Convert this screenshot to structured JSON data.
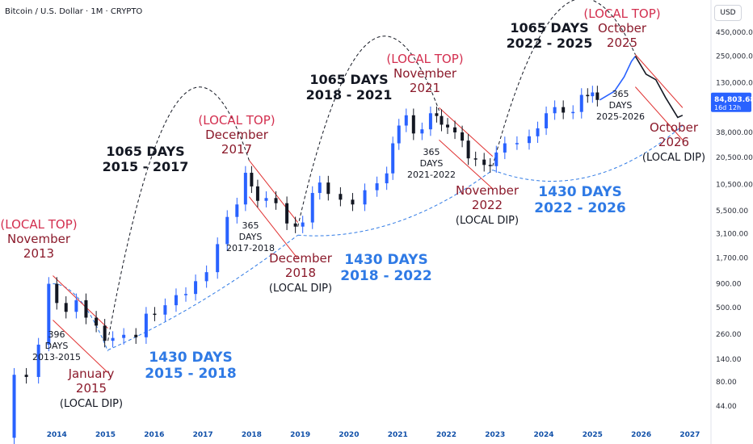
{
  "header": {
    "title": "Bitcoin / U.S. Dollar · 1M · CRYPTO",
    "currency": "USD"
  },
  "price_label": {
    "value": "84,803.68",
    "countdown": "16d 12h"
  },
  "colors": {
    "up": "#2962ff",
    "down": "#131722",
    "top": "#c2185b",
    "cycle_blue": "#2f7ae5",
    "channel": "#e03131",
    "projection_up": "#2962ff",
    "projection_down": "#131722"
  },
  "chart_data": {
    "type": "candlestick",
    "title": "Bitcoin / U.S. Dollar · 1M · CRYPTO",
    "y_scale": "log",
    "ylim": [
      30,
      700000
    ],
    "xlim": [
      2013.0,
      2027.4
    ],
    "y_ticks": [
      {
        "v": 450000,
        "label": "450,000.00"
      },
      {
        "v": 250000,
        "label": "250,000.00"
      },
      {
        "v": 130000,
        "label": "130,000.00"
      },
      {
        "v": 38000,
        "label": "38,000.00"
      },
      {
        "v": 20500,
        "label": "20,500.00"
      },
      {
        "v": 10500,
        "label": "10,500.00"
      },
      {
        "v": 5500,
        "label": "5,500.00"
      },
      {
        "v": 3100,
        "label": "3,100.00"
      },
      {
        "v": 1700,
        "label": "1,700.00"
      },
      {
        "v": 900,
        "label": "900.00"
      },
      {
        "v": 500,
        "label": "500.00"
      },
      {
        "v": 260,
        "label": "260.00"
      },
      {
        "v": 140,
        "label": "140.00"
      },
      {
        "v": 80,
        "label": "80.00"
      },
      {
        "v": 44,
        "label": "44.00"
      }
    ],
    "x_ticks": [
      "2014",
      "2015",
      "2016",
      "2017",
      "2018",
      "2019",
      "2020",
      "2021",
      "2022",
      "2023",
      "2024",
      "2025",
      "2026",
      "2027"
    ],
    "last_price": 84803.68,
    "series": [
      {
        "name": "BTCUSD monthly closes",
        "points": [
          [
            2013.0,
            20
          ],
          [
            2013.25,
            95
          ],
          [
            2013.5,
            90
          ],
          [
            2013.75,
            200
          ],
          [
            2013.92,
            900
          ],
          [
            2014.08,
            560
          ],
          [
            2014.3,
            450
          ],
          [
            2014.5,
            600
          ],
          [
            2014.7,
            390
          ],
          [
            2014.92,
            320
          ],
          [
            2015.05,
            220
          ],
          [
            2015.25,
            236
          ],
          [
            2015.5,
            255
          ],
          [
            2015.75,
            240
          ],
          [
            2015.92,
            430
          ],
          [
            2016.1,
            420
          ],
          [
            2016.35,
            530
          ],
          [
            2016.55,
            680
          ],
          [
            2016.75,
            700
          ],
          [
            2016.95,
            960
          ],
          [
            2017.2,
            1200
          ],
          [
            2017.4,
            2400
          ],
          [
            2017.6,
            4700
          ],
          [
            2017.8,
            6400
          ],
          [
            2017.95,
            14000
          ],
          [
            2018.05,
            10000
          ],
          [
            2018.2,
            7000
          ],
          [
            2018.4,
            7500
          ],
          [
            2018.6,
            6600
          ],
          [
            2018.85,
            4000
          ],
          [
            2018.95,
            3700
          ],
          [
            2019.15,
            4100
          ],
          [
            2019.35,
            8500
          ],
          [
            2019.45,
            11000
          ],
          [
            2019.7,
            8300
          ],
          [
            2019.95,
            7200
          ],
          [
            2020.2,
            6400
          ],
          [
            2020.45,
            9100
          ],
          [
            2020.7,
            10800
          ],
          [
            2020.85,
            13800
          ],
          [
            2020.95,
            29000
          ],
          [
            2021.1,
            45000
          ],
          [
            2021.25,
            58000
          ],
          [
            2021.4,
            37000
          ],
          [
            2021.6,
            41000
          ],
          [
            2021.75,
            61000
          ],
          [
            2021.85,
            57000
          ],
          [
            2021.95,
            46000
          ],
          [
            2022.1,
            43000
          ],
          [
            2022.25,
            38000
          ],
          [
            2022.4,
            31000
          ],
          [
            2022.5,
            20000
          ],
          [
            2022.7,
            19400
          ],
          [
            2022.85,
            17000
          ],
          [
            2022.95,
            16500
          ],
          [
            2023.1,
            23100
          ],
          [
            2023.3,
            29000
          ],
          [
            2023.6,
            29200
          ],
          [
            2023.8,
            34500
          ],
          [
            2023.95,
            42000
          ],
          [
            2024.15,
            61000
          ],
          [
            2024.3,
            71000
          ],
          [
            2024.5,
            62000
          ],
          [
            2024.7,
            63000
          ],
          [
            2024.85,
            96000
          ],
          [
            2024.95,
            93000
          ],
          [
            2025.05,
            102000
          ],
          [
            2025.15,
            84800
          ]
        ]
      },
      {
        "name": "projection up",
        "points": [
          [
            2025.15,
            84800
          ],
          [
            2025.45,
            105000
          ],
          [
            2025.65,
            150000
          ],
          [
            2025.8,
            220000
          ],
          [
            2025.88,
            250000
          ]
        ]
      },
      {
        "name": "projection down",
        "points": [
          [
            2025.88,
            250000
          ],
          [
            2026.1,
            160000
          ],
          [
            2026.3,
            140000
          ],
          [
            2026.5,
            90000
          ],
          [
            2026.75,
            55000
          ],
          [
            2026.85,
            58000
          ]
        ]
      }
    ],
    "annotations": [
      {
        "lines": [
          "(LOCAL TOP)",
          "November",
          "2013"
        ],
        "styles": [
          "top",
          "top",
          "top"
        ]
      },
      {
        "lines": [
          "396",
          "DAYS",
          "2013-2015"
        ],
        "styles": [
          "small",
          "small",
          "small"
        ]
      },
      {
        "lines": [
          "January",
          "2015",
          "(LOCAL DIP)"
        ],
        "styles": [
          "top",
          "top",
          "dark"
        ]
      },
      {
        "lines": [
          "1065 DAYS",
          "2015 - 2017"
        ],
        "styles": [
          "big",
          "big"
        ]
      },
      {
        "lines": [
          "1430 DAYS",
          "2015 - 2018"
        ],
        "styles": [
          "blue",
          "blue"
        ]
      },
      {
        "lines": [
          "(LOCAL TOP)",
          "December",
          "2017"
        ],
        "styles": [
          "top",
          "top",
          "top"
        ]
      },
      {
        "lines": [
          "365",
          "DAYS",
          "2017-2018"
        ],
        "styles": [
          "small",
          "small",
          "small"
        ]
      },
      {
        "lines": [
          "December",
          "2018",
          "(LOCAL DIP)"
        ],
        "styles": [
          "top",
          "top",
          "dark"
        ]
      },
      {
        "lines": [
          "1065 DAYS",
          "2018 - 2021"
        ],
        "styles": [
          "big",
          "big"
        ]
      },
      {
        "lines": [
          "1430 DAYS",
          "2018 - 2022"
        ],
        "styles": [
          "blue",
          "blue"
        ]
      },
      {
        "lines": [
          "(LOCAL TOP)",
          "November",
          "2021"
        ],
        "styles": [
          "top",
          "top",
          "top"
        ]
      },
      {
        "lines": [
          "365",
          "DAYS",
          "2021-2022"
        ],
        "styles": [
          "small",
          "small",
          "small"
        ]
      },
      {
        "lines": [
          "November",
          "2022",
          "(LOCAL DIP)"
        ],
        "styles": [
          "top",
          "top",
          "dark"
        ]
      },
      {
        "lines": [
          "1065 DAYS",
          "2022 - 2025"
        ],
        "styles": [
          "big",
          "big"
        ]
      },
      {
        "lines": [
          "1430 DAYS",
          "2022 - 2026"
        ],
        "styles": [
          "blue",
          "blue"
        ]
      },
      {
        "lines": [
          "(LOCAL TOP)",
          "October",
          "2025"
        ],
        "styles": [
          "top",
          "top",
          "top"
        ]
      },
      {
        "lines": [
          "365",
          "DAYS",
          "2025-2026"
        ],
        "styles": [
          "small",
          "small",
          "small"
        ]
      },
      {
        "lines": [
          "October",
          "2026",
          "(LOCAL DIP)"
        ],
        "styles": [
          "top",
          "top",
          "dark"
        ]
      }
    ]
  }
}
